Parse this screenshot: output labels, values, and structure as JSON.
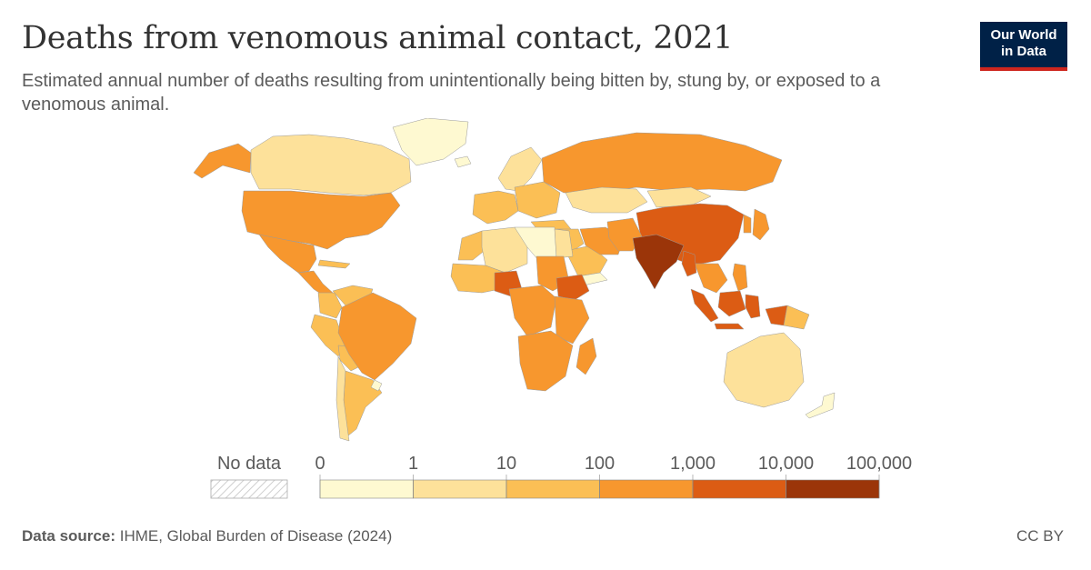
{
  "header": {
    "title": "Deaths from venomous animal contact, 2021",
    "subtitle": "Estimated annual number of deaths resulting from unintentionally being bitten by, stung by, or exposed to a venomous animal."
  },
  "logo": {
    "line1": "Our World",
    "line2": "in Data",
    "bg_color": "#002147",
    "accent_color": "#ce261e"
  },
  "legend": {
    "no_data_label": "No data",
    "tick_labels": [
      "0",
      "1",
      "10",
      "100",
      "1,000",
      "10,000",
      "100,000"
    ],
    "bin_colors": [
      "#fef9d1",
      "#fde19a",
      "#fbbf55",
      "#f7972e",
      "#dc5c14",
      "#9b3509"
    ]
  },
  "footer": {
    "source_label": "Data source:",
    "source_text": "IHME, Global Burden of Disease (2024)",
    "license": "CC BY"
  },
  "map_data": {
    "type": "choropleth",
    "scale": "log10",
    "bins": [
      0,
      1,
      10,
      100,
      1000,
      10000,
      100000
    ],
    "regions": [
      {
        "name": "Canada",
        "bin": 1
      },
      {
        "name": "Alaska",
        "bin": 3
      },
      {
        "name": "Greenland",
        "bin": 0
      },
      {
        "name": "United States",
        "bin": 3
      },
      {
        "name": "Mexico",
        "bin": 3
      },
      {
        "name": "Central America",
        "bin": 3
      },
      {
        "name": "Cuba",
        "bin": 2
      },
      {
        "name": "Venezuela",
        "bin": 2
      },
      {
        "name": "Colombia",
        "bin": 2
      },
      {
        "name": "Peru",
        "bin": 2
      },
      {
        "name": "Bolivia",
        "bin": 2
      },
      {
        "name": "Brazil",
        "bin": 3
      },
      {
        "name": "Argentina",
        "bin": 2
      },
      {
        "name": "Chile",
        "bin": 1
      },
      {
        "name": "Uruguay",
        "bin": 0
      },
      {
        "name": "Iceland",
        "bin": 0
      },
      {
        "name": "Scandinavia",
        "bin": 1
      },
      {
        "name": "Western Europe",
        "bin": 2
      },
      {
        "name": "Eastern Europe",
        "bin": 2
      },
      {
        "name": "Russia",
        "bin": 3
      },
      {
        "name": "Kazakhstan",
        "bin": 1
      },
      {
        "name": "Mongolia",
        "bin": 1
      },
      {
        "name": "China",
        "bin": 4
      },
      {
        "name": "Japan",
        "bin": 3
      },
      {
        "name": "Korea",
        "bin": 3
      },
      {
        "name": "Turkey",
        "bin": 2
      },
      {
        "name": "Middle East",
        "bin": 2
      },
      {
        "name": "Saudi Arabia",
        "bin": 2
      },
      {
        "name": "Yemen",
        "bin": 0
      },
      {
        "name": "Iran",
        "bin": 3
      },
      {
        "name": "Afghanistan/Pakistan",
        "bin": 3
      },
      {
        "name": "India",
        "bin": 5
      },
      {
        "name": "Southeast Asia",
        "bin": 3
      },
      {
        "name": "Myanmar",
        "bin": 4
      },
      {
        "name": "Philippines",
        "bin": 3
      },
      {
        "name": "Sumatra",
        "bin": 4
      },
      {
        "name": "Borneo",
        "bin": 4
      },
      {
        "name": "Java",
        "bin": 4
      },
      {
        "name": "Sulawesi",
        "bin": 4
      },
      {
        "name": "New Guinea",
        "bin": 4
      },
      {
        "name": "Papua New Guinea",
        "bin": 2
      },
      {
        "name": "Australia",
        "bin": 1
      },
      {
        "name": "New Zealand",
        "bin": 0
      },
      {
        "name": "Morocco",
        "bin": 2
      },
      {
        "name": "Algeria",
        "bin": 1
      },
      {
        "name": "Libya",
        "bin": 0
      },
      {
        "name": "Egypt",
        "bin": 1
      },
      {
        "name": "Sahel",
        "bin": 2
      },
      {
        "name": "Nigeria",
        "bin": 4
      },
      {
        "name": "Sudan",
        "bin": 3
      },
      {
        "name": "Ethiopia",
        "bin": 4
      },
      {
        "name": "Central Africa",
        "bin": 3
      },
      {
        "name": "East Africa",
        "bin": 3
      },
      {
        "name": "Southern Africa",
        "bin": 3
      },
      {
        "name": "Madagascar",
        "bin": 3
      }
    ]
  }
}
